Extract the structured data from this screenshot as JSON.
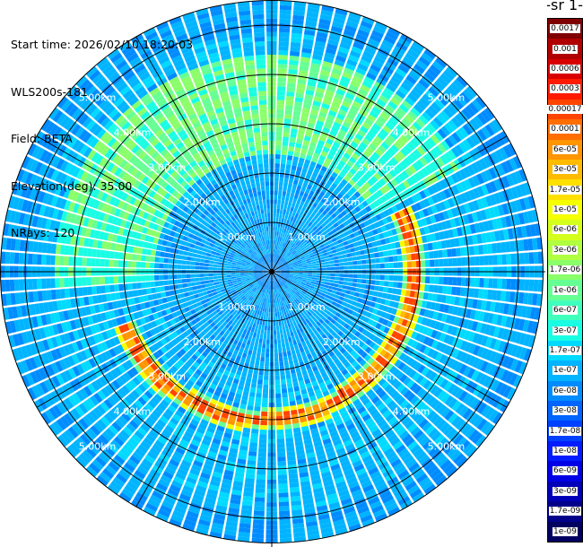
{
  "info": {
    "start_time": "Start time: 2026/02/10 18:20:03",
    "instrument": "WLS200s-181",
    "field": "Field: BETA",
    "elevation": "Elevation(deg): 35.00",
    "nrays": "NRays: 120"
  },
  "colorbar": {
    "title": "-1 sr-",
    "labels": [
      "0.0017",
      "0.001",
      "0.0006",
      "0.0003",
      "0.00017",
      "0.0001",
      "6e-05",
      "3e-05",
      "1.7e-05",
      "1e-05",
      "6e-06",
      "3e-06",
      "1.7e-06",
      "1e-06",
      "6e-07",
      "3e-07",
      "1.7e-07",
      "1e-07",
      "6e-08",
      "3e-08",
      "1.7e-08",
      "1e-08",
      "6e-09",
      "3e-09",
      "1.7e-09",
      "1e-09"
    ],
    "colors": [
      "#800000",
      "#b00000",
      "#d80000",
      "#ff1a00",
      "#ff4400",
      "#ff6e00",
      "#ff9500",
      "#ffbb00",
      "#ffe000",
      "#f5ff00",
      "#d4ff1c",
      "#b0ff40",
      "#8aff6a",
      "#66ff94",
      "#40ffbc",
      "#1afde3",
      "#00daff",
      "#00b4ff",
      "#008cff",
      "#0064ff",
      "#0040ff",
      "#001cff",
      "#0000e6",
      "#0000b8",
      "#00008a",
      "#000060"
    ]
  },
  "chart_data": {
    "type": "heatmap",
    "projection": "polar",
    "field": "BETA",
    "rays": 120,
    "range_rings_km": [
      1,
      2,
      3,
      4,
      5
    ],
    "range_labels": [
      "1.00km",
      "2.00km",
      "3.00km",
      "4.00km",
      "5.00km"
    ],
    "max_range_km": 5.5,
    "colorbar_min": 1e-09,
    "colorbar_max": 0.0017,
    "features": [
      {
        "name": "high-backscatter arc",
        "range_km": [
          3.0,
          3.3
        ],
        "azimuth_deg": [
          75,
          255
        ],
        "value": 0.0001
      },
      {
        "name": "enhanced band",
        "range_km": [
          2.3,
          4.3
        ],
        "azimuth_deg": [
          10,
          200
        ],
        "value": 1e-06
      }
    ]
  }
}
